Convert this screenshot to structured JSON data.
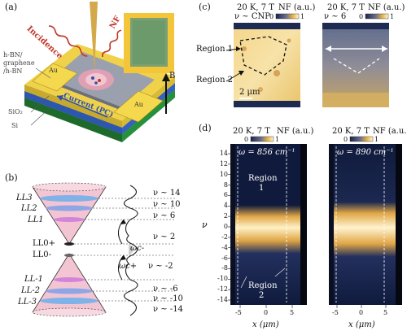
{
  "panel_a": {
    "label": "(a)",
    "incidence": "Incidence",
    "nf": "NF",
    "stack_label": [
      "h-BN/",
      "graphene",
      "/h-BN"
    ],
    "au_left": "Au",
    "au_right": "Au",
    "sio2": "SiO₂",
    "si": "Si",
    "current": "Current (PC)",
    "b_field": "B"
  },
  "panel_b": {
    "label": "(b)",
    "ll_labels": [
      "LL3",
      "LL2",
      "LL1",
      "LL0+",
      "LL0-",
      "LL-1",
      "LL-2",
      "LL-3"
    ],
    "nu_labels": [
      "ν ~ 14",
      "ν ~ 10",
      "ν ~ 6",
      "ν ~ 2",
      "ν ~ -2",
      "ν ~ -6",
      "ν ~ -10",
      "ν ~ -14"
    ],
    "omega_minus": "ωc-",
    "omega_plus": "ωc+"
  },
  "panel_c": {
    "label": "(c)",
    "left": {
      "title": "20 K, 7 T",
      "colorbar_title": "NF (a.u.)",
      "nu_tag": "ν ~ CNP",
      "cb_min": "0",
      "cb_max": "1"
    },
    "right": {
      "title": "20 K, 7 T",
      "colorbar_title": "NF (a.u.)",
      "nu_tag": "ν ~ 6",
      "cb_min": "0",
      "cb_max": "1"
    },
    "region1": "Region 1",
    "region2": "Region 2",
    "scalebar": "2 μm"
  },
  "panel_d": {
    "label": "(d)",
    "left": {
      "title": "20 K, 7 T",
      "colorbar_title": "NF (a.u.)",
      "omega": "ω = 856 cm⁻¹",
      "cb_min": "0",
      "cb_max": "1"
    },
    "right": {
      "title": "20 K, 7 T",
      "colorbar_title": "NF (a.u.)",
      "omega": "ω = 890 cm⁻¹",
      "cb_min": "0",
      "cb_max": "1"
    },
    "ylabel": "ν",
    "xlabel_left": "x (μm)",
    "xlabel_right": "x (μm)",
    "yticks": [
      "14",
      "12",
      "10",
      "8",
      "6",
      "4",
      "2",
      "0",
      "-2",
      "-4",
      "-6",
      "-8",
      "-10",
      "-12",
      "-14"
    ],
    "xticks_left": [
      "-5",
      "0",
      "5"
    ],
    "xticks_right": [
      "-5",
      "0",
      "5"
    ],
    "region1": [
      "Region",
      "1"
    ],
    "region2": [
      "Region",
      "2"
    ]
  },
  "colors": {
    "gold": "#f2c94c",
    "dark_blue": "#1f2d57",
    "nf_red": "#c0392b",
    "incidence_red": "#c0392b",
    "current_blue": "#2a4fb0"
  }
}
